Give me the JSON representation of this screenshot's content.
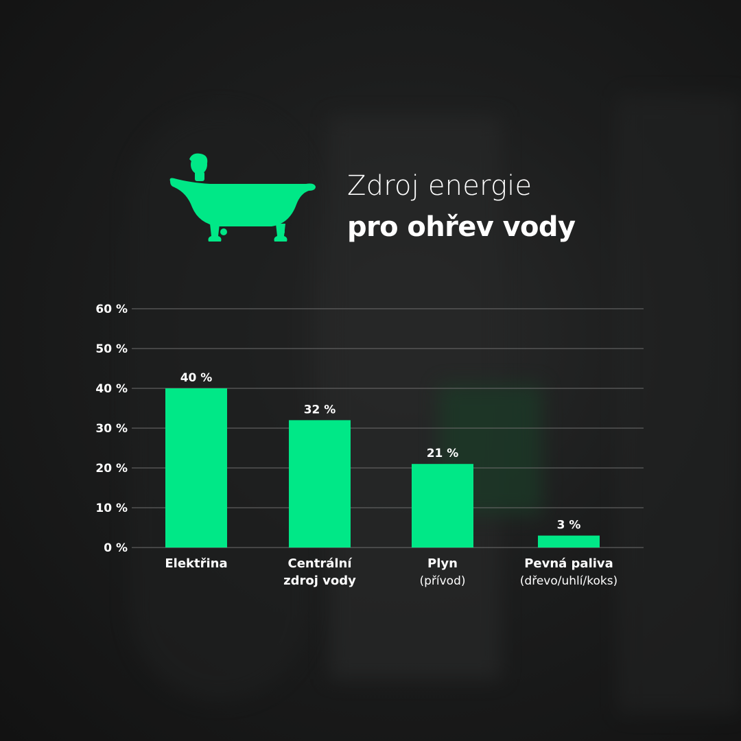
{
  "header": {
    "icon": "bathtub-with-person-icon",
    "title_line1": "Zdroj energie",
    "title_line2": "pro ohřev vody"
  },
  "colors": {
    "accent": "#00E887",
    "text": "#FFFFFF",
    "grid": "#6E6E6E",
    "background": "#161616"
  },
  "chart_data": {
    "type": "bar",
    "title": "Zdroj energie pro ohřev vody",
    "categories": [
      {
        "label": "Elektřina",
        "sublabel": ""
      },
      {
        "label": "Centrální zdroj vody",
        "label_lines": [
          "Centrální",
          "zdroj vody"
        ],
        "sublabel": ""
      },
      {
        "label": "Plyn",
        "sublabel": "(přívod)"
      },
      {
        "label": "Pevná paliva",
        "sublabel": "(dřevo/uhlí/koks)"
      }
    ],
    "values": [
      40,
      32,
      21,
      3
    ],
    "value_labels": [
      "40 %",
      "32 %",
      "21 %",
      "3 %"
    ],
    "y_ticks": [
      "0 %",
      "10 %",
      "20 %",
      "30 %",
      "40 %",
      "50 %",
      "60 %"
    ],
    "ylim": [
      0,
      60
    ],
    "grid": true,
    "legend": "none"
  }
}
